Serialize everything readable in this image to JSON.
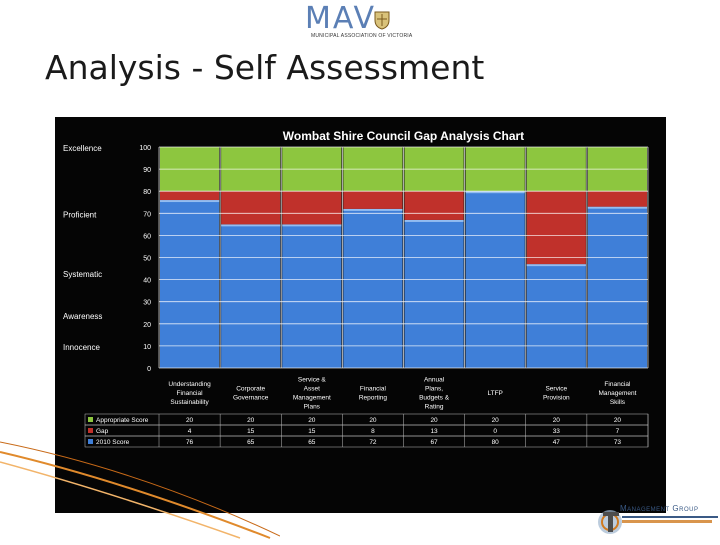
{
  "logo": {
    "text": "MAV",
    "subtitle": "MUNICIPAL ASSOCIATION OF VICTORIA"
  },
  "page": {
    "title": "Analysis - Self Assessment"
  },
  "footer_logo": {
    "text": "Management Group"
  },
  "chart_data": {
    "type": "bar",
    "stacked": true,
    "title": "Wombat Shire Council Gap Analysis Chart",
    "categories": [
      "Understanding Financial Sustainability",
      "Corporate Governance",
      "Service & Asset Management Plans",
      "Financial Reporting",
      "Annual Plans, Budgets & Rating",
      "LTFP",
      "Service Provision",
      "Financial Management Skills"
    ],
    "series": [
      {
        "name": "Appropriate Score",
        "values": [
          20,
          20,
          20,
          20,
          20,
          20,
          20,
          20
        ],
        "color": "#8dc63f"
      },
      {
        "name": "Gap",
        "values": [
          4,
          15,
          15,
          8,
          13,
          0,
          33,
          7
        ],
        "color": "#c0312b"
      },
      {
        "name": "2010 Score",
        "values": [
          76,
          65,
          65,
          72,
          67,
          80,
          47,
          73
        ],
        "color": "#3f7fd8"
      }
    ],
    "ylim": [
      0,
      100
    ],
    "yticks": [
      0,
      10,
      20,
      30,
      40,
      50,
      60,
      70,
      80,
      90,
      100
    ],
    "grid": true,
    "legend": "table-below",
    "level_labels": [
      {
        "label": "Excellence",
        "y": 100
      },
      {
        "label": "Proficient",
        "y": 70
      },
      {
        "label": "Systematic",
        "y": 43
      },
      {
        "label": "Awareness",
        "y": 24
      },
      {
        "label": "Innocence",
        "y": 10
      }
    ]
  }
}
